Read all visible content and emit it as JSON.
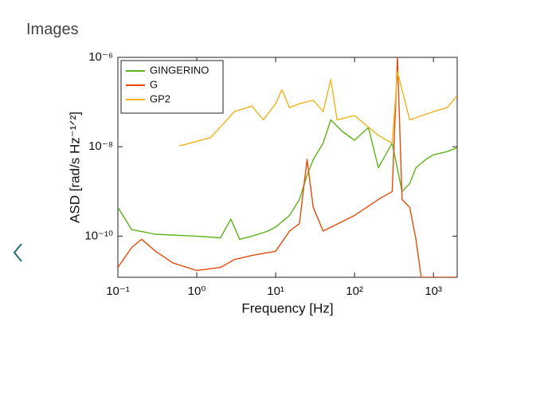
{
  "header": {
    "title": "Images"
  },
  "chart_data": {
    "type": "line",
    "xlabel": "Frequency  [Hz]",
    "ylabel": "ASD  [rad/s Hz⁻¹ᐟ²]",
    "log_x": true,
    "log_y": true,
    "xlim": [
      0.1,
      2000
    ],
    "ylim": [
      1.2e-11,
      1e-06
    ],
    "xticks": [
      {
        "value": 0.1,
        "label": "10⁻¹"
      },
      {
        "value": 1,
        "label": "10⁰"
      },
      {
        "value": 10,
        "label": "10¹"
      },
      {
        "value": 100,
        "label": "10²"
      },
      {
        "value": 1000,
        "label": "10³"
      }
    ],
    "yticks": [
      {
        "value": 1e-10,
        "label": "10⁻¹⁰"
      },
      {
        "value": 1e-08,
        "label": "10⁻⁸"
      },
      {
        "value": 1e-06,
        "label": "10⁻⁶"
      }
    ],
    "legend": "upper left",
    "series": [
      {
        "name": "GINGERINO",
        "color": "#5cb31a",
        "x": [
          0.1,
          0.15,
          0.3,
          1,
          2,
          2.7,
          3.5,
          5,
          8,
          10,
          15,
          20,
          25,
          30,
          40,
          50,
          70,
          100,
          150,
          200,
          300,
          400,
          500,
          600,
          800,
          1000,
          1500,
          2000
        ],
        "values": [
          4.4e-10,
          1.4e-10,
          1.1e-10,
          1e-10,
          9.2e-11,
          2.4e-10,
          8.5e-11,
          1e-10,
          1.3e-10,
          1.6e-10,
          2.9e-10,
          6.6e-10,
          2.3e-09,
          5.2e-09,
          1.2e-08,
          4e-08,
          2.2e-08,
          1.4e-08,
          2.7e-08,
          3.4e-09,
          1.2e-08,
          1e-09,
          1.5e-09,
          3.4e-09,
          5.2e-09,
          6.6e-09,
          7.8e-09,
          9.5e-09
        ]
      },
      {
        "name": "G",
        "color": "#e64a0a",
        "x": [
          0.1,
          0.15,
          0.2,
          0.3,
          0.5,
          1,
          2,
          3,
          5,
          10,
          15,
          20,
          25,
          30,
          40,
          100,
          200,
          300,
          350,
          400,
          500,
          600,
          700,
          1000,
          2000
        ],
        "values": [
          2e-11,
          5.6e-11,
          8.5e-11,
          4.6e-11,
          2.5e-11,
          1.7e-11,
          2e-11,
          3e-11,
          3.7e-11,
          4.6e-11,
          1.3e-10,
          1.9e-10,
          5.2e-09,
          4.4e-10,
          1.3e-10,
          2.9e-10,
          6.6e-10,
          1e-09,
          1e-06,
          6.6e-10,
          4.4e-10,
          8.5e-11,
          1.2e-11,
          1.2e-11,
          1.2e-11
        ]
      },
      {
        "name": "GP2",
        "color": "#f0b41a",
        "x": [
          0.6,
          1.5,
          3,
          5,
          7,
          10,
          12,
          15,
          20,
          30,
          40,
          50,
          60,
          100,
          200,
          300,
          350,
          500,
          1000,
          1500,
          2000
        ],
        "values": [
          1.04e-08,
          1.6e-08,
          6.1e-08,
          8.1e-08,
          4e-08,
          9.2e-08,
          1.9e-07,
          7.5e-08,
          9.2e-08,
          1.1e-07,
          6.1e-08,
          3.2e-07,
          4e-08,
          5e-08,
          1.8e-08,
          1.2e-08,
          4.8e-07,
          4e-08,
          6.1e-08,
          7.5e-08,
          1.4e-07
        ]
      }
    ]
  }
}
